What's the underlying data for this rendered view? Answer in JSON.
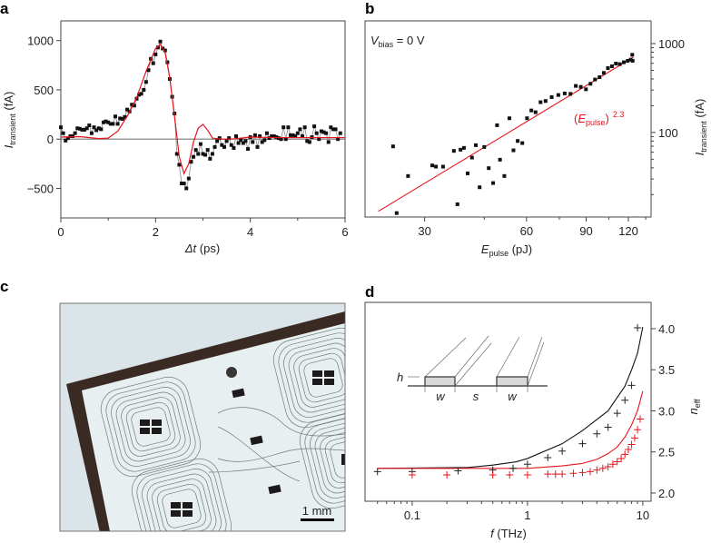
{
  "panels": {
    "a": "a",
    "b": "b",
    "c": "c",
    "d": "d"
  },
  "photo": {
    "scale_bar_label": "1 mm"
  },
  "inset": {
    "h": "h",
    "w1": "w",
    "s": "s",
    "w2": "w"
  },
  "colors": {
    "data": "#111111",
    "fit": "#e8141b",
    "zero_line": "#777777"
  },
  "chart_data": [
    {
      "id": "a",
      "type": "line",
      "xlabel_symbol": "Δt",
      "xlabel_unit": " (ps)",
      "ylabel_symbol": "I",
      "ylabel_sub": "transient",
      "ylabel_unit": " (fA)",
      "xlim": [
        0,
        6
      ],
      "ylim": [
        -800,
        1200
      ],
      "xticks": [
        0,
        2,
        4,
        6
      ],
      "xtick_labels": [
        "0",
        "2",
        "4",
        "6"
      ],
      "yticks": [
        1000,
        500,
        0,
        -500
      ],
      "ytick_labels": [
        "1000",
        "500",
        "0",
        "−500"
      ],
      "series": [
        {
          "name": "measured",
          "style": "markers+line",
          "x": [
            0,
            0.05,
            0.1,
            0.15,
            0.2,
            0.25,
            0.3,
            0.35,
            0.4,
            0.45,
            0.5,
            0.55,
            0.6,
            0.65,
            0.7,
            0.75,
            0.8,
            0.85,
            0.9,
            0.95,
            1.0,
            1.05,
            1.1,
            1.15,
            1.2,
            1.25,
            1.3,
            1.35,
            1.4,
            1.45,
            1.5,
            1.55,
            1.6,
            1.65,
            1.7,
            1.75,
            1.8,
            1.85,
            1.9,
            1.95,
            2.0,
            2.05,
            2.1,
            2.15,
            2.2,
            2.25,
            2.3,
            2.35,
            2.4,
            2.45,
            2.5,
            2.55,
            2.6,
            2.65,
            2.7,
            2.75,
            2.8,
            2.85,
            2.9,
            2.95,
            3.0,
            3.05,
            3.1,
            3.15,
            3.2,
            3.25,
            3.3,
            3.35,
            3.4,
            3.45,
            3.5,
            3.55,
            3.6,
            3.65,
            3.7,
            3.75,
            3.8,
            3.85,
            3.9,
            3.95,
            4.0,
            4.05,
            4.1,
            4.15,
            4.2,
            4.25,
            4.3,
            4.35,
            4.4,
            4.45,
            4.5,
            4.55,
            4.6,
            4.65,
            4.7,
            4.75,
            4.8,
            4.85,
            4.9,
            4.95,
            5.0,
            5.05,
            5.1,
            5.15,
            5.2,
            5.25,
            5.3,
            5.35,
            5.4,
            5.45,
            5.5,
            5.55,
            5.6,
            5.65,
            5.7,
            5.75,
            5.8,
            5.85,
            5.9
          ],
          "y": [
            120,
            60,
            -15,
            10,
            30,
            30,
            60,
            110,
            105,
            95,
            95,
            110,
            140,
            60,
            120,
            90,
            110,
            100,
            170,
            180,
            170,
            155,
            155,
            230,
            155,
            210,
            205,
            225,
            300,
            280,
            350,
            340,
            410,
            450,
            460,
            500,
            580,
            700,
            815,
            770,
            860,
            930,
            990,
            920,
            900,
            780,
            610,
            430,
            260,
            -150,
            -260,
            -450,
            -450,
            -500,
            -400,
            -230,
            -180,
            -110,
            -150,
            -50,
            -150,
            -160,
            -110,
            -200,
            -150,
            -80,
            -20,
            10,
            -60,
            -80,
            -20,
            10,
            -60,
            -90,
            30,
            -40,
            -10,
            -40,
            -20,
            -100,
            20,
            -30,
            40,
            -80,
            30,
            -30,
            -10,
            60,
            10,
            30,
            30,
            20,
            10,
            0,
            120,
            0,
            120,
            40,
            40,
            30,
            60,
            100,
            30,
            120,
            -20,
            -30,
            20,
            130,
            60,
            0,
            80,
            70,
            60,
            -30,
            120,
            100,
            100,
            0,
            60
          ]
        },
        {
          "name": "fit",
          "style": "line",
          "x": [
            0,
            0.4,
            0.8,
            1.0,
            1.2,
            1.4,
            1.6,
            1.8,
            2.0,
            2.1,
            2.2,
            2.3,
            2.4,
            2.5,
            2.6,
            2.7,
            2.8,
            2.9,
            3.0,
            3.1,
            3.2,
            3.4,
            3.6,
            3.8,
            4.0,
            4.5,
            5.0,
            6.0
          ],
          "y": [
            20,
            25,
            5,
            10,
            80,
            230,
            420,
            690,
            920,
            960,
            880,
            620,
            230,
            -180,
            -350,
            -250,
            -30,
            110,
            150,
            90,
            10,
            0,
            0,
            10,
            20,
            15,
            15,
            15
          ]
        }
      ]
    },
    {
      "id": "b",
      "type": "scatter",
      "xscale": "log",
      "yscale": "log",
      "xlabel_symbol": "E",
      "xlabel_sub": "pulse",
      "xlabel_unit": " (pJ)",
      "ylabel_symbol": "I",
      "ylabel_sub": "transient",
      "ylabel_unit": " (fA)",
      "xlim": [
        20,
        140
      ],
      "ylim": [
        11.2,
        1800
      ],
      "xticks": [
        30,
        60,
        90,
        120
      ],
      "xtick_labels": [
        "30",
        "60",
        "90",
        "120"
      ],
      "yticks": [
        1000,
        100
      ],
      "ytick_labels": [
        "1000",
        "100"
      ],
      "annotation": {
        "symbol": "V",
        "sub": "bias",
        "rest": " = 0 V"
      },
      "fit_label": {
        "open": "(",
        "symbol": "E",
        "sub": "pulse",
        "close": ")",
        "exponent": "2.3"
      },
      "series": [
        {
          "name": "measured",
          "x": [
            24.2,
            24.8,
            26.8,
            31.6,
            32.4,
            34.0,
            36.6,
            38.3,
            39.2,
            37.5,
            40.2,
            41.4,
            42.5,
            43.6,
            45.0,
            46.4,
            47.8,
            49.1,
            50.1,
            51.6,
            53.4,
            54.9,
            56.5,
            58.3,
            60.2,
            62.0,
            63.8,
            66.0,
            68.3,
            71.2,
            74.5,
            77.8,
            80.9,
            83.9,
            86.8,
            89.9,
            92.7,
            95.6,
            98.6,
            101.5,
            104.4,
            107.3,
            110.2,
            113.2,
            116.3,
            119.4,
            121.9,
            123.2,
            123.5
          ],
          "y": [
            69.8,
            12.4,
            32.4,
            42.6,
            41.3,
            41.3,
            62.1,
            64,
            67.1,
            15.6,
            34.7,
            52.2,
            72,
            24.2,
            68.7,
            39.7,
            27.0,
            120.7,
            49.4,
            32.4,
            144.5,
            63,
            80.3,
            76,
            144.5,
            177,
            169,
            219,
            226,
            250,
            264,
            275,
            272,
            334,
            326,
            306,
            353,
            394,
            419,
            468,
            530,
            556,
            596,
            587,
            616,
            640,
            660,
            748,
            640
          ]
        },
        {
          "name": "fit (E_pulse)^2.3",
          "x": [
            21.9,
            124
          ],
          "y": [
            13,
            703
          ]
        }
      ]
    },
    {
      "id": "d",
      "type": "scatter",
      "xscale": "log",
      "xlabel_symbol": "f",
      "xlabel_unit": " (THz)",
      "ylabel_symbol": "n",
      "ylabel_sub": "eff",
      "xlim": [
        0.039,
        11.8
      ],
      "ylim": [
        1.9,
        4.32
      ],
      "xticks": [
        0.1,
        1,
        10
      ],
      "xtick_labels": [
        "0.1",
        "1",
        "10"
      ],
      "yticks": [
        2.0,
        2.5,
        3.0,
        3.5,
        4.0
      ],
      "ytick_labels": [
        "2.0",
        "2.5",
        "3.0",
        "3.5",
        "4.0"
      ],
      "series": [
        {
          "name": "black-markers",
          "x": [
            0.05,
            0.1,
            0.25,
            0.5,
            0.75,
            1,
            1.5,
            2,
            3,
            4,
            5,
            6,
            7,
            8,
            9
          ],
          "y": [
            2.26,
            2.26,
            2.27,
            2.28,
            2.3,
            2.35,
            2.43,
            2.51,
            2.6,
            2.72,
            2.8,
            2.97,
            3.13,
            3.31,
            4.01
          ]
        },
        {
          "name": "red-markers",
          "x": [
            0.1,
            0.2,
            0.5,
            0.7,
            1,
            1.5,
            1.75,
            2,
            2.5,
            3,
            3.5,
            4,
            4.5,
            5,
            5.5,
            6,
            6.5,
            7,
            7.5,
            8,
            8.5,
            9,
            9.5
          ],
          "y": [
            2.22,
            2.22,
            2.22,
            2.22,
            2.22,
            2.23,
            2.23,
            2.23,
            2.24,
            2.25,
            2.26,
            2.28,
            2.3,
            2.32,
            2.35,
            2.38,
            2.42,
            2.47,
            2.53,
            2.59,
            2.67,
            2.77,
            2.9
          ]
        },
        {
          "name": "black-line",
          "x": [
            0.05,
            0.3,
            0.5,
            0.8,
            1,
            2,
            3,
            5,
            7,
            8,
            9,
            10
          ],
          "y": [
            2.3,
            2.31,
            2.34,
            2.38,
            2.42,
            2.6,
            2.76,
            3.0,
            3.3,
            3.5,
            3.7,
            4.02
          ]
        },
        {
          "name": "red-line",
          "x": [
            0.05,
            1,
            2,
            3,
            4,
            5,
            6,
            7,
            8,
            9,
            10
          ],
          "y": [
            2.3,
            2.3,
            2.33,
            2.36,
            2.41,
            2.48,
            2.56,
            2.68,
            2.83,
            3.0,
            3.24
          ]
        }
      ]
    }
  ]
}
